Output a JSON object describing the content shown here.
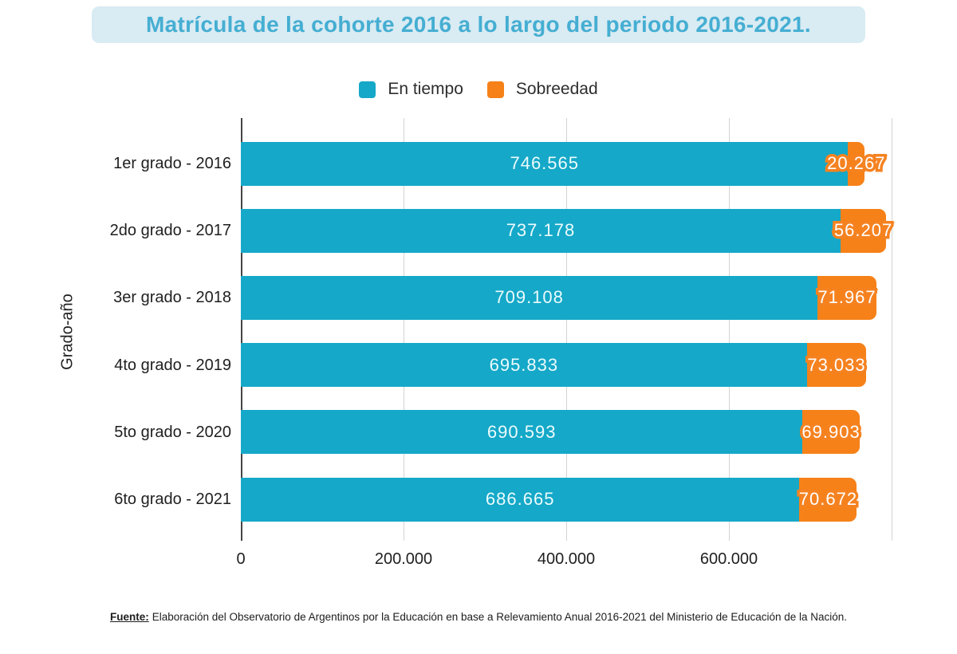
{
  "title": "Matrícula de la cohorte 2016 a lo largo del periodo 2016-2021.",
  "legend": [
    {
      "label": "En tiempo",
      "color": "#15a8c8"
    },
    {
      "label": "Sobreedad",
      "color": "#f68118"
    }
  ],
  "footer": {
    "source_label": "Fuente:",
    "source_text": "Elaboración del Observatorio de Argentinos por la Educación en base a Relevamiento Anual 2016-2021 del Ministerio de Educación de la Nación."
  },
  "colors": {
    "teal": "#15a8c8",
    "orange": "#f68118",
    "title_text": "#45aed2",
    "title_banner_bg": "#d9ebf3",
    "gridline": "#d3d3d3",
    "axis_line": "#454545"
  },
  "chart_data": {
    "type": "bar",
    "orientation": "horizontal",
    "stacked": true,
    "title": "Matrícula de la cohorte 2016 a lo largo del periodo 2016-2021.",
    "xlabel": "",
    "ylabel": "Grado-año",
    "xlim": [
      0,
      800000
    ],
    "grid": true,
    "legend_position": "top",
    "categories": [
      "1er grado - 2016",
      "2do grado - 2017",
      "3er grado - 2018",
      "4to grado - 2019",
      "5to grado - 2020",
      "6to grado - 2021"
    ],
    "series": [
      {
        "name": "En tiempo",
        "color": "#15a8c8",
        "values": [
          746565,
          737178,
          709108,
          695833,
          690593,
          686665
        ],
        "labels": [
          "746.565",
          "737.178",
          "709.108",
          "695.833",
          "690.593",
          "686.665"
        ]
      },
      {
        "name": "Sobreedad",
        "color": "#f68118",
        "values": [
          20267,
          56207,
          71967,
          73033,
          69903,
          70672
        ],
        "labels": [
          "20.267",
          "56.207",
          "71.967",
          "73.033",
          "69.903",
          "70.672"
        ]
      }
    ],
    "xticks": [
      {
        "value": 0,
        "label": "0"
      },
      {
        "value": 200000,
        "label": "200.000"
      },
      {
        "value": 400000,
        "label": "400.000"
      },
      {
        "value": 600000,
        "label": "600.000"
      }
    ],
    "gridlines": [
      200000,
      400000,
      600000,
      800000
    ]
  }
}
